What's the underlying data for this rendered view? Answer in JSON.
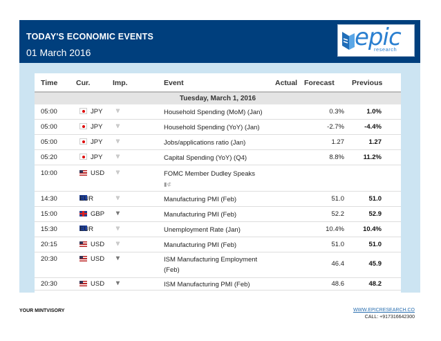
{
  "header": {
    "title": "TODAY'S ECONOMIC EVENTS",
    "date": "01 March 2016",
    "logo_text": "epic",
    "logo_sub": "research"
  },
  "table": {
    "columns": [
      "Time",
      "Cur.",
      "Imp.",
      "Event",
      "Actual",
      "Forecast",
      "Previous"
    ],
    "day_header": "Tuesday, March 1, 2016",
    "rows": [
      {
        "time": "05:00",
        "cur": "JPY",
        "flag": "jp",
        "imp": 2,
        "event": "Household Spending (MoM) (Jan)",
        "event2": "",
        "actual": "",
        "forecast": "0.3%",
        "previous": "1.0%"
      },
      {
        "time": "05:00",
        "cur": "JPY",
        "flag": "jp",
        "imp": 2,
        "event": "Household Spending (YoY) (Jan)",
        "event2": "",
        "actual": "",
        "forecast": "-2.7%",
        "previous": "-4.4%"
      },
      {
        "time": "05:00",
        "cur": "JPY",
        "flag": "jp",
        "imp": 2,
        "event": "Jobs/applications ratio (Jan)",
        "event2": "",
        "actual": "",
        "forecast": "1.27",
        "previous": "1.27"
      },
      {
        "time": "05:20",
        "cur": "JPY",
        "flag": "jp",
        "imp": 2,
        "event": "Capital Spending (YoY) (Q4)",
        "event2": "",
        "actual": "",
        "forecast": "8.8%",
        "previous": "11.2%"
      },
      {
        "time": "10:00",
        "cur": "USD",
        "flag": "us",
        "imp": 2,
        "event": "FOMC Member Dudley Speaks",
        "event2": "",
        "actual": "",
        "forecast": "",
        "previous": "",
        "speech": true
      },
      {
        "time": "14:30",
        "cur": "EUR",
        "flag": "eu",
        "imp": 2,
        "event": "Manufacturing PMI (Feb)",
        "event2": "",
        "actual": "",
        "forecast": "51.0",
        "previous": "51.0"
      },
      {
        "time": "15:00",
        "cur": "GBP",
        "flag": "gb",
        "imp": 3,
        "event": "Manufacturing PMI (Feb)",
        "event2": "",
        "actual": "",
        "forecast": "52.2",
        "previous": "52.9"
      },
      {
        "time": "15:30",
        "cur": "EUR",
        "flag": "eu",
        "imp": 2,
        "event": "Unemployment Rate (Jan)",
        "event2": "",
        "actual": "",
        "forecast": "10.4%",
        "previous": "10.4%"
      },
      {
        "time": "20:15",
        "cur": "USD",
        "flag": "us",
        "imp": 2,
        "event": "Manufacturing PMI (Feb)",
        "event2": "",
        "actual": "",
        "forecast": "51.0",
        "previous": "51.0"
      },
      {
        "time": "20:30",
        "cur": "USD",
        "flag": "us",
        "imp": 3,
        "event": "ISM Manufacturing Employment",
        "event2": "(Feb)",
        "actual": "",
        "forecast": "46.4",
        "previous": "45.9"
      },
      {
        "time": "20:30",
        "cur": "USD",
        "flag": "us",
        "imp": 3,
        "event": "ISM Manufacturing PMI (Feb)",
        "event2": "",
        "actual": "",
        "forecast": "48.6",
        "previous": "48.2"
      }
    ]
  },
  "footer": {
    "left": "YOUR MINTVISORY",
    "url": "WWW.EPICRESEARCH.CO",
    "call": "CALL: +917316642300"
  },
  "colors": {
    "header_bg": "#003f7d",
    "panel_bg": "#cce4f2",
    "logo_blue": "#2a7fd0"
  }
}
